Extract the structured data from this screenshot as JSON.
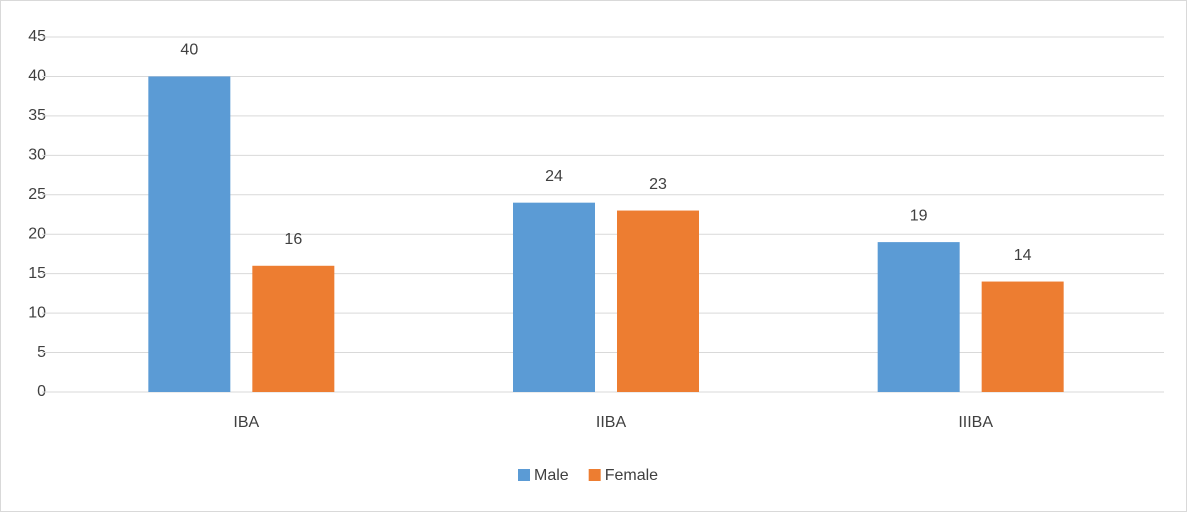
{
  "chart_data": {
    "type": "bar",
    "categories": [
      "IBA",
      "IIBA",
      "IIIBA"
    ],
    "series": [
      {
        "name": "Male",
        "color": "#5b9bd5",
        "values": [
          40,
          24,
          19
        ]
      },
      {
        "name": "Female",
        "color": "#ed7d31",
        "values": [
          16,
          23,
          14
        ]
      }
    ],
    "ylim": [
      0,
      45
    ],
    "yticks": [
      0,
      5,
      10,
      15,
      20,
      25,
      30,
      35,
      40,
      45
    ],
    "grid": true,
    "legend": "bottom",
    "data_labels": true
  }
}
